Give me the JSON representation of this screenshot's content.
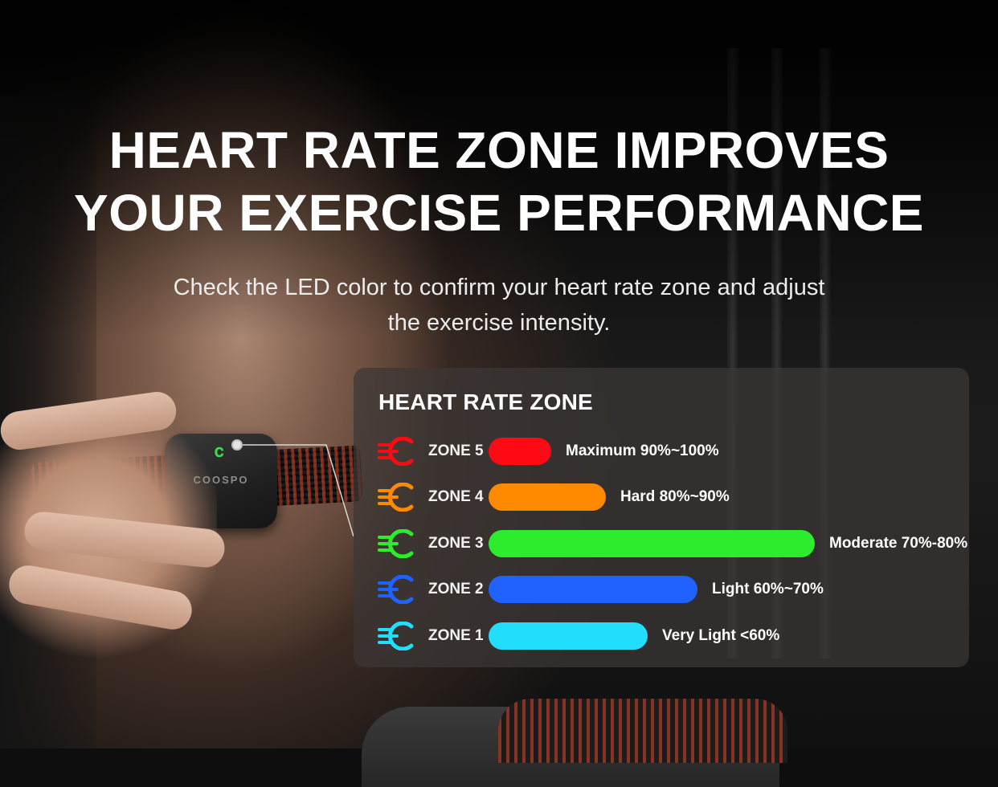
{
  "headline": {
    "line1": "HEART RATE ZONE IMPROVES",
    "line2": "YOUR EXERCISE PERFORMANCE"
  },
  "subtitle": {
    "line1": "Check the LED color to confirm your heart rate zone and adjust",
    "line2": "the exercise intensity."
  },
  "device": {
    "logo": "COOSPO",
    "led_color": "#3bdc4b"
  },
  "zone_panel": {
    "title": "HEART RATE ZONE",
    "zones": [
      {
        "label": "ZONE 5",
        "description": "Maximum 90%~100%",
        "color": "#ff0a14",
        "icon": "zone-led-icon",
        "level": 0.15
      },
      {
        "label": "ZONE 4",
        "description": "Hard 80%~90%",
        "color": "#ff8a00",
        "icon": "zone-led-icon",
        "level": 0.28
      },
      {
        "label": "ZONE 3",
        "description": "Moderate 70%-80%",
        "color": "#2dec2d",
        "icon": "zone-led-icon",
        "level": 0.78
      },
      {
        "label": "ZONE 2",
        "description": "Light 60%~70%",
        "color": "#1f62ff",
        "icon": "zone-led-icon",
        "level": 0.5
      },
      {
        "label": "ZONE 1",
        "description": "Very Light <60%",
        "color": "#22ddfc",
        "icon": "zone-led-icon",
        "level": 0.38
      }
    ]
  }
}
